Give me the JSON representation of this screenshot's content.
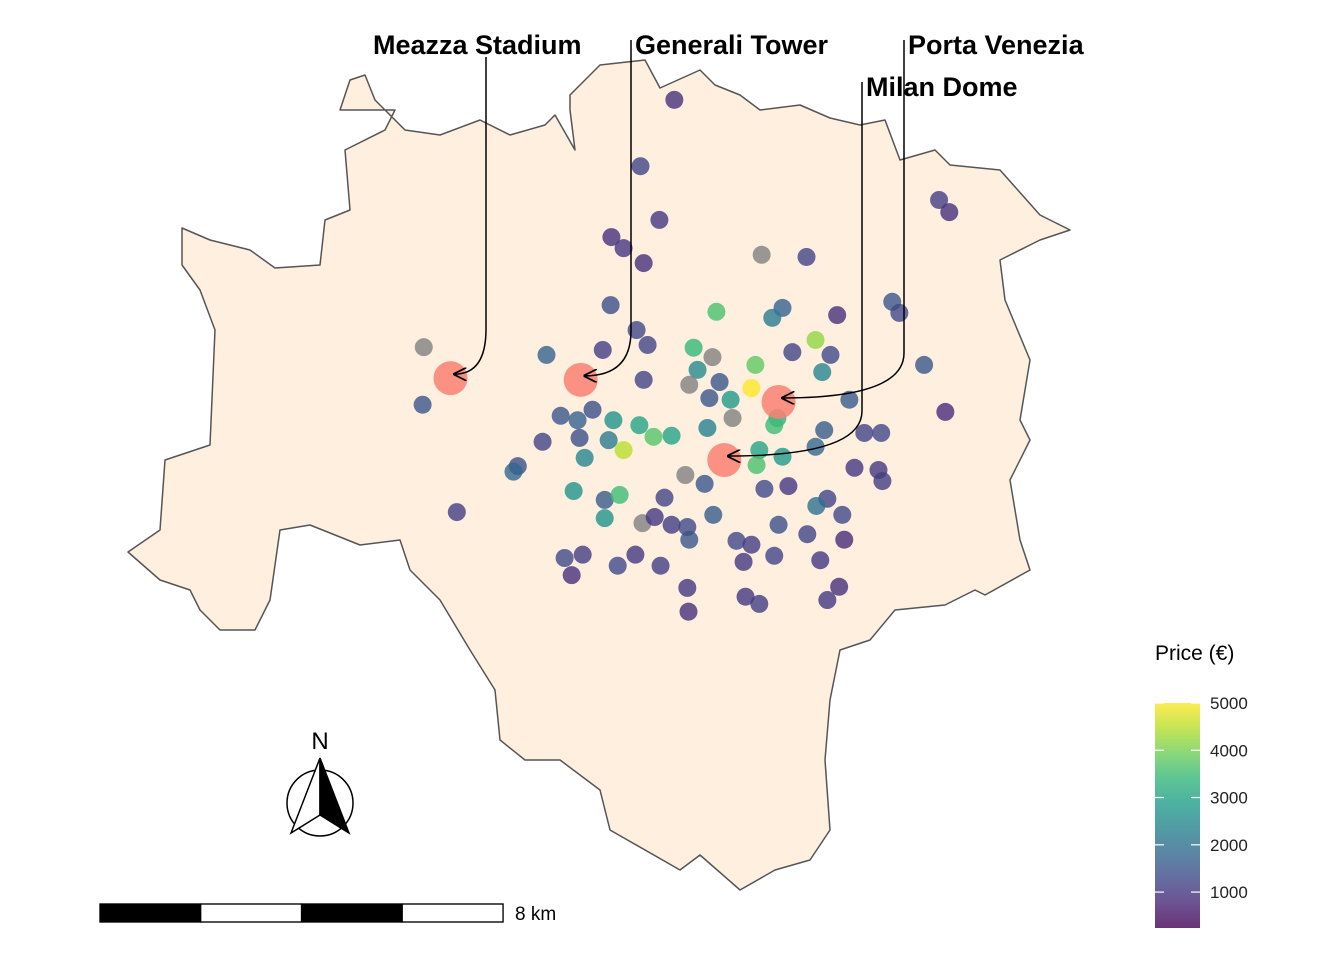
{
  "map": {
    "lon_lim": [
      9.04,
      9.28
    ],
    "lat_lim": [
      45.39,
      45.54
    ]
  },
  "landmarks": [
    {
      "name": "Meazza Stadium",
      "lon": 9.122,
      "lat": 45.4825
    },
    {
      "name": "Generali Tower",
      "lon": 9.1551,
      "lat": 45.4822
    },
    {
      "name": "Porta Venezia",
      "lon": 9.2054,
      "lat": 45.4782
    },
    {
      "name": "Milan Dome",
      "lon": 9.1916,
      "lat": 45.4677
    }
  ],
  "listings": [
    {
      "lon": 9.1789,
      "lat": 45.5328,
      "price": 900
    },
    {
      "lon": 9.1703,
      "lat": 45.5208,
      "price": 1200
    },
    {
      "lon": 9.1751,
      "lat": 45.5111,
      "price": 1000
    },
    {
      "lon": 9.1629,
      "lat": 45.508,
      "price": 900
    },
    {
      "lon": 9.166,
      "lat": 45.506,
      "price": 1000
    },
    {
      "lon": 9.1711,
      "lat": 45.5033,
      "price": 900
    },
    {
      "lon": 9.2011,
      "lat": 45.5048,
      "price": null
    },
    {
      "lon": 9.2125,
      "lat": 45.5044,
      "price": 1200
    },
    {
      "lon": 9.2462,
      "lat": 45.5147,
      "price": 1100
    },
    {
      "lon": 9.2488,
      "lat": 45.5125,
      "price": 900
    },
    {
      "lon": 9.1152,
      "lat": 45.4881,
      "price": null
    },
    {
      "lon": 9.1149,
      "lat": 45.4777,
      "price": 1500
    },
    {
      "lon": 9.1236,
      "lat": 45.4583,
      "price": 1100
    },
    {
      "lon": 9.1464,
      "lat": 45.4867,
      "price": 1700
    },
    {
      "lon": 9.1627,
      "lat": 45.4957,
      "price": 1400
    },
    {
      "lon": 9.1607,
      "lat": 45.4876,
      "price": 1100
    },
    {
      "lon": 9.1693,
      "lat": 45.4912,
      "price": 1300
    },
    {
      "lon": 9.1721,
      "lat": 45.4885,
      "price": 1200
    },
    {
      "lon": 9.1711,
      "lat": 45.4822,
      "price": 1200
    },
    {
      "lon": 9.1896,
      "lat": 45.4945,
      "price": 3600
    },
    {
      "lon": 9.1838,
      "lat": 45.488,
      "price": 3400
    },
    {
      "lon": 9.1886,
      "lat": 45.4863,
      "price": null
    },
    {
      "lon": 9.1848,
      "lat": 45.484,
      "price": 2500
    },
    {
      "lon": 9.1904,
      "lat": 45.4818,
      "price": 1500
    },
    {
      "lon": 9.1985,
      "lat": 45.4807,
      "price": 5000
    },
    {
      "lon": 9.1995,
      "lat": 45.4849,
      "price": 3800
    },
    {
      "lon": 9.2064,
      "lat": 45.4952,
      "price": 1700
    },
    {
      "lon": 9.2038,
      "lat": 45.4934,
      "price": 2200
    },
    {
      "lon": 9.2203,
      "lat": 45.4939,
      "price": 900
    },
    {
      "lon": 9.2148,
      "lat": 45.4894,
      "price": 4200
    },
    {
      "lon": 9.2089,
      "lat": 45.4872,
      "price": 1200
    },
    {
      "lon": 9.2186,
      "lat": 45.4867,
      "price": 1300
    },
    {
      "lon": 9.2165,
      "lat": 45.4836,
      "price": 2400
    },
    {
      "lon": 9.2343,
      "lat": 45.4963,
      "price": 1500
    },
    {
      "lon": 9.2361,
      "lat": 45.4943,
      "price": 1300
    },
    {
      "lon": 9.2424,
      "lat": 45.4849,
      "price": 1500
    },
    {
      "lon": 9.2478,
      "lat": 45.4764,
      "price": 800
    },
    {
      "lon": 9.2234,
      "lat": 45.4786,
      "price": 1600
    },
    {
      "lon": 9.2272,
      "lat": 45.4726,
      "price": 1200
    },
    {
      "lon": 9.2315,
      "lat": 45.4726,
      "price": 1300
    },
    {
      "lon": 9.2247,
      "lat": 45.4663,
      "price": 1000
    },
    {
      "lon": 9.2308,
      "lat": 45.4659,
      "price": 1000
    },
    {
      "lon": 9.2318,
      "lat": 45.4639,
      "price": 1100
    },
    {
      "lon": 9.2051,
      "lat": 45.4753,
      "price": 3200
    },
    {
      "lon": 9.2043,
      "lat": 45.474,
      "price": 3500
    },
    {
      "lon": 9.2005,
      "lat": 45.4695,
      "price": 3000
    },
    {
      "lon": 9.1998,
      "lat": 45.4668,
      "price": 3600
    },
    {
      "lon": 9.2064,
      "lat": 45.4683,
      "price": 2800
    },
    {
      "lon": 9.2148,
      "lat": 45.4701,
      "price": 1800
    },
    {
      "lon": 9.217,
      "lat": 45.4731,
      "price": 1600
    },
    {
      "lon": 9.1932,
      "lat": 45.4786,
      "price": 2800
    },
    {
      "lon": 9.1937,
      "lat": 45.4753,
      "price": null
    },
    {
      "lon": 9.1873,
      "lat": 45.4735,
      "price": 2300
    },
    {
      "lon": 9.1878,
      "lat": 45.4789,
      "price": 1500
    },
    {
      "lon": 9.1827,
      "lat": 45.4813,
      "price": null
    },
    {
      "lon": 9.1782,
      "lat": 45.4721,
      "price": 3000
    },
    {
      "lon": 9.1736,
      "lat": 45.4719,
      "price": 3700
    },
    {
      "lon": 9.17,
      "lat": 45.474,
      "price": 3000
    },
    {
      "lon": 9.166,
      "lat": 45.4695,
      "price": 4500
    },
    {
      "lon": 9.1634,
      "lat": 45.4749,
      "price": 2700
    },
    {
      "lon": 9.1622,
      "lat": 45.4713,
      "price": 2200
    },
    {
      "lon": 9.1581,
      "lat": 45.4768,
      "price": 1400
    },
    {
      "lon": 9.1543,
      "lat": 45.4749,
      "price": 1700
    },
    {
      "lon": 9.15,
      "lat": 45.4757,
      "price": 1500
    },
    {
      "lon": 9.1548,
      "lat": 45.4717,
      "price": 1400
    },
    {
      "lon": 9.1454,
      "lat": 45.471,
      "price": 1200
    },
    {
      "lon": 9.1391,
      "lat": 45.4666,
      "price": 1400
    },
    {
      "lon": 9.138,
      "lat": 45.4656,
      "price": 1800
    },
    {
      "lon": 9.1561,
      "lat": 45.4681,
      "price": 2400
    },
    {
      "lon": 9.1533,
      "lat": 45.4621,
      "price": 2700
    },
    {
      "lon": 9.1612,
      "lat": 45.4605,
      "price": 1600
    },
    {
      "lon": 9.165,
      "lat": 45.4614,
      "price": 3500
    },
    {
      "lon": 9.1612,
      "lat": 45.4572,
      "price": 2700
    },
    {
      "lon": 9.1708,
      "lat": 45.4563,
      "price": null
    },
    {
      "lon": 9.1739,
      "lat": 45.4574,
      "price": 1000
    },
    {
      "lon": 9.1782,
      "lat": 45.456,
      "price": 1100
    },
    {
      "lon": 9.1822,
      "lat": 45.4556,
      "price": 1300
    },
    {
      "lon": 9.1827,
      "lat": 45.4533,
      "price": 1500
    },
    {
      "lon": 9.1888,
      "lat": 45.4578,
      "price": 1600
    },
    {
      "lon": 9.1817,
      "lat": 45.465,
      "price": null
    },
    {
      "lon": 9.1866,
      "lat": 45.4634,
      "price": 1500
    },
    {
      "lon": 9.1764,
      "lat": 45.4609,
      "price": 1200
    },
    {
      "lon": 9.2018,
      "lat": 45.4625,
      "price": 1300
    },
    {
      "lon": 9.2079,
      "lat": 45.463,
      "price": 1000
    },
    {
      "lon": 9.2178,
      "lat": 45.4607,
      "price": 1200
    },
    {
      "lon": 9.215,
      "lat": 45.4594,
      "price": 2000
    },
    {
      "lon": 9.2216,
      "lat": 45.4578,
      "price": 1300
    },
    {
      "lon": 9.2054,
      "lat": 45.456,
      "price": 1400
    },
    {
      "lon": 9.2127,
      "lat": 45.4543,
      "price": 1200
    },
    {
      "lon": 9.2221,
      "lat": 45.4533,
      "price": 800
    },
    {
      "lon": 9.1947,
      "lat": 45.4531,
      "price": 1300
    },
    {
      "lon": 9.1985,
      "lat": 45.4524,
      "price": 1100
    },
    {
      "lon": 9.2043,
      "lat": 45.4504,
      "price": 1200
    },
    {
      "lon": 9.1965,
      "lat": 45.4493,
      "price": 1000
    },
    {
      "lon": 9.216,
      "lat": 45.4496,
      "price": 1000
    },
    {
      "lon": 9.2208,
      "lat": 45.4448,
      "price": 900
    },
    {
      "lon": 9.2178,
      "lat": 45.4424,
      "price": 1000
    },
    {
      "lon": 9.1822,
      "lat": 45.4446,
      "price": 1000
    },
    {
      "lon": 9.1825,
      "lat": 45.4403,
      "price": 900
    },
    {
      "lon": 9.197,
      "lat": 45.443,
      "price": 1000
    },
    {
      "lon": 9.2005,
      "lat": 45.4417,
      "price": 1100
    },
    {
      "lon": 9.151,
      "lat": 45.45,
      "price": 1300
    },
    {
      "lon": 9.1556,
      "lat": 45.4506,
      "price": 1100
    },
    {
      "lon": 9.1528,
      "lat": 45.4469,
      "price": 900
    },
    {
      "lon": 9.1645,
      "lat": 45.4486,
      "price": 1300
    },
    {
      "lon": 9.1754,
      "lat": 45.4486,
      "price": 1100
    },
    {
      "lon": 9.169,
      "lat": 45.4506,
      "price": 1000
    }
  ],
  "north_arrow": "N",
  "scale_bar": {
    "value": 8,
    "label": "8 km"
  },
  "colorbar": {
    "title": "Price (€)",
    "lim": [
      240,
      5000
    ],
    "ticks": [
      1000,
      2000,
      3000,
      4000,
      5000
    ]
  }
}
